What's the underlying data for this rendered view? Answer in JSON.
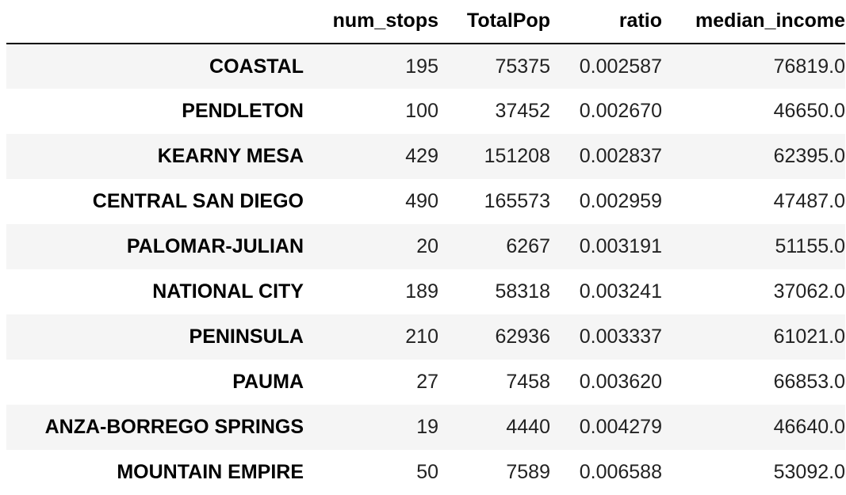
{
  "table": {
    "columns": [
      "",
      "num_stops",
      "TotalPop",
      "ratio",
      "median_income"
    ],
    "rows": [
      {
        "index": "COASTAL",
        "num_stops": "195",
        "TotalPop": "75375",
        "ratio": "0.002587",
        "median_income": "76819.0"
      },
      {
        "index": "PENDLETON",
        "num_stops": "100",
        "TotalPop": "37452",
        "ratio": "0.002670",
        "median_income": "46650.0"
      },
      {
        "index": "KEARNY MESA",
        "num_stops": "429",
        "TotalPop": "151208",
        "ratio": "0.002837",
        "median_income": "62395.0"
      },
      {
        "index": "CENTRAL SAN DIEGO",
        "num_stops": "490",
        "TotalPop": "165573",
        "ratio": "0.002959",
        "median_income": "47487.0"
      },
      {
        "index": "PALOMAR-JULIAN",
        "num_stops": "20",
        "TotalPop": "6267",
        "ratio": "0.003191",
        "median_income": "51155.0"
      },
      {
        "index": "NATIONAL CITY",
        "num_stops": "189",
        "TotalPop": "58318",
        "ratio": "0.003241",
        "median_income": "37062.0"
      },
      {
        "index": "PENINSULA",
        "num_stops": "210",
        "TotalPop": "62936",
        "ratio": "0.003337",
        "median_income": "61021.0"
      },
      {
        "index": "PAUMA",
        "num_stops": "27",
        "TotalPop": "7458",
        "ratio": "0.003620",
        "median_income": "66853.0"
      },
      {
        "index": "ANZA-BORREGO SPRINGS",
        "num_stops": "19",
        "TotalPop": "4440",
        "ratio": "0.004279",
        "median_income": "46640.0"
      },
      {
        "index": "MOUNTAIN EMPIRE",
        "num_stops": "50",
        "TotalPop": "7589",
        "ratio": "0.006588",
        "median_income": "53092.0"
      }
    ]
  }
}
